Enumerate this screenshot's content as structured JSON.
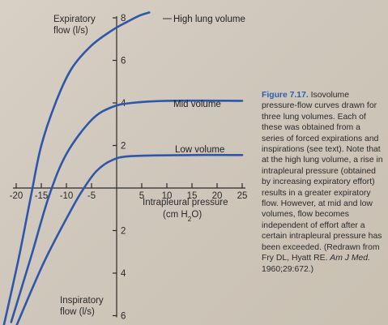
{
  "chart_data": {
    "type": "line",
    "x_axis": {
      "title": "Intrapleural pressure",
      "unit": "(cm H",
      "unit_sub": "2",
      "unit_end": "O)",
      "range": [
        -20,
        25
      ],
      "ticks": [
        -20,
        -15,
        -10,
        -5,
        5,
        10,
        15,
        20,
        25
      ],
      "tick_labels": [
        "-20",
        "-15",
        "-10",
        "-5",
        "5",
        "10",
        "15",
        "20",
        "25"
      ]
    },
    "y_axis": {
      "title_top_line1": "Expiratory",
      "title_top_line2": "flow (l/s)",
      "title_bottom_line1": "Inspiratory",
      "title_bottom_line2": "flow (l/s)",
      "range": [
        -6,
        8
      ],
      "ticks": [
        8,
        6,
        4,
        2,
        -2,
        -4,
        -6
      ],
      "tick_labels": [
        "8",
        "6",
        "4",
        "2",
        "2",
        "4",
        "6"
      ]
    },
    "series": [
      {
        "name": "High lung volume",
        "color": "#2f56a8",
        "points": [
          [
            -22.5,
            -6.5
          ],
          [
            -19.5,
            -3.3
          ],
          [
            -17,
            -0.3
          ],
          [
            -15,
            2.0
          ],
          [
            -12,
            4.1
          ],
          [
            -9,
            5.6
          ],
          [
            -5,
            6.7
          ],
          [
            -1,
            7.4
          ],
          [
            2,
            7.8
          ],
          [
            4.5,
            8.1
          ],
          [
            6.5,
            8.25
          ]
        ]
      },
      {
        "name": "Mid volume",
        "color": "#2f56a8",
        "points": [
          [
            -21,
            -6.3
          ],
          [
            -17,
            -3.2
          ],
          [
            -13.5,
            -0.4
          ],
          [
            -10,
            1.6
          ],
          [
            -5,
            3.2
          ],
          [
            -1,
            3.8
          ],
          [
            3,
            4.0
          ],
          [
            10,
            4.1
          ],
          [
            25,
            4.1
          ]
        ]
      },
      {
        "name": "Low volume",
        "color": "#2f56a8",
        "points": [
          [
            -20,
            -6.5
          ],
          [
            -14.5,
            -3.5
          ],
          [
            -9,
            -1.0
          ],
          [
            -6.5,
            0
          ],
          [
            -4,
            0.8
          ],
          [
            -1,
            1.3
          ],
          [
            3,
            1.5
          ],
          [
            15,
            1.55
          ],
          [
            25,
            1.55
          ]
        ]
      }
    ],
    "grid": false,
    "legend": "inline labels"
  },
  "caption": {
    "figure_label": "Figure 7.17.",
    "text": " Isovolume pressure-flow curves drawn for three lung volumes. Each of these was obtained from a series of forced expirations and inspirations (see text). Note that at the high lung volume, a rise in intrapleural pressure (obtained by increasing expiratory effort) results in a greater expiratory flow. However, at mid and low volumes, flow becomes independent of effort after a certain intrapleural pressure has been exceeded. (Redrawn from Fry DL, Hyatt RE. ",
    "ref_journal": "Am J Med.",
    "ref_rest": " 1960;29:672.)"
  }
}
